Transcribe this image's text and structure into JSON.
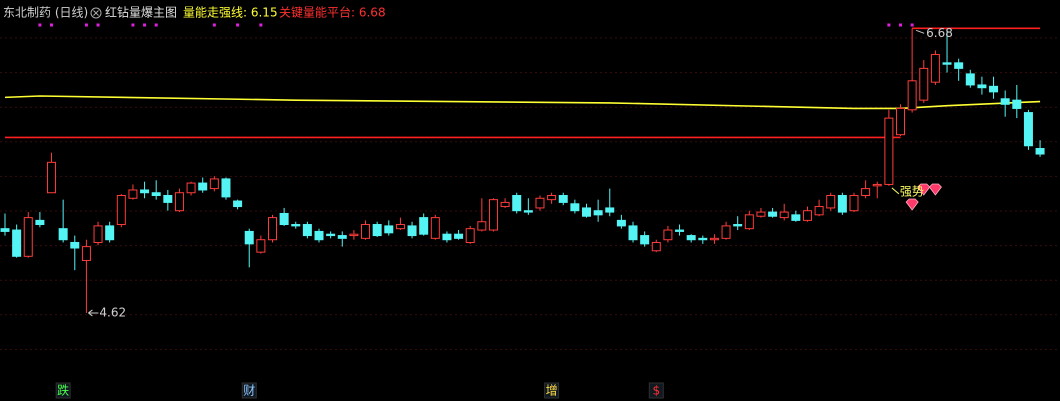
{
  "chart_data": {
    "type": "candlestick",
    "header": {
      "stock": "东北制药 (日线)",
      "indicator": "红钻量爆主图",
      "strong_line": "量能走强线: 6.15",
      "platform": "关键量能平台: 6.68"
    },
    "ylim": [
      4.2,
      6.74
    ],
    "up_color": "#ff3c3c",
    "down_color": "#54f4f4",
    "ohlc": [
      [
        5.23,
        5.34,
        5.18,
        5.21
      ],
      [
        5.22,
        5.26,
        5.02,
        5.03
      ],
      [
        5.03,
        5.35,
        5.02,
        5.31
      ],
      [
        5.29,
        5.35,
        5.24,
        5.26
      ],
      [
        5.49,
        5.78,
        5.49,
        5.71
      ],
      [
        5.23,
        5.44,
        5.13,
        5.15
      ],
      [
        5.13,
        5.18,
        4.93,
        5.09
      ],
      [
        5.0,
        5.15,
        4.62,
        5.1
      ],
      [
        5.13,
        5.28,
        5.11,
        5.25
      ],
      [
        5.25,
        5.28,
        5.13,
        5.15
      ],
      [
        5.26,
        5.48,
        5.24,
        5.47
      ],
      [
        5.45,
        5.55,
        5.44,
        5.51
      ],
      [
        5.51,
        5.57,
        5.45,
        5.49
      ],
      [
        5.49,
        5.58,
        5.44,
        5.47
      ],
      [
        5.47,
        5.51,
        5.36,
        5.42
      ],
      [
        5.36,
        5.52,
        5.35,
        5.49
      ],
      [
        5.49,
        5.57,
        5.47,
        5.56
      ],
      [
        5.56,
        5.6,
        5.49,
        5.51
      ],
      [
        5.52,
        5.61,
        5.5,
        5.59
      ],
      [
        5.59,
        5.6,
        5.44,
        5.46
      ],
      [
        5.43,
        5.44,
        5.37,
        5.39
      ],
      [
        5.21,
        5.23,
        4.95,
        5.12
      ],
      [
        5.06,
        5.18,
        5.05,
        5.15
      ],
      [
        5.15,
        5.33,
        5.13,
        5.31
      ],
      [
        5.34,
        5.38,
        5.25,
        5.26
      ],
      [
        5.26,
        5.28,
        5.23,
        5.25
      ],
      [
        5.26,
        5.28,
        5.16,
        5.18
      ],
      [
        5.21,
        5.23,
        5.13,
        5.15
      ],
      [
        5.19,
        5.21,
        5.16,
        5.18
      ],
      [
        5.18,
        5.21,
        5.1,
        5.16
      ],
      [
        5.18,
        5.22,
        5.15,
        5.19
      ],
      [
        5.16,
        5.29,
        5.15,
        5.26
      ],
      [
        5.26,
        5.28,
        5.17,
        5.18
      ],
      [
        5.25,
        5.29,
        5.18,
        5.2
      ],
      [
        5.23,
        5.31,
        5.22,
        5.26
      ],
      [
        5.25,
        5.28,
        5.16,
        5.18
      ],
      [
        5.31,
        5.34,
        5.18,
        5.19
      ],
      [
        5.16,
        5.33,
        5.15,
        5.31
      ],
      [
        5.19,
        5.21,
        5.13,
        5.15
      ],
      [
        5.19,
        5.22,
        5.15,
        5.16
      ],
      [
        5.13,
        5.25,
        5.12,
        5.23
      ],
      [
        5.22,
        5.45,
        5.21,
        5.28
      ],
      [
        5.22,
        5.45,
        5.21,
        5.44
      ],
      [
        5.39,
        5.45,
        5.38,
        5.42
      ],
      [
        5.47,
        5.49,
        5.34,
        5.36
      ],
      [
        5.36,
        5.45,
        5.33,
        5.35
      ],
      [
        5.38,
        5.47,
        5.36,
        5.45
      ],
      [
        5.44,
        5.49,
        5.41,
        5.47
      ],
      [
        5.47,
        5.49,
        5.4,
        5.42
      ],
      [
        5.41,
        5.44,
        5.34,
        5.36
      ],
      [
        5.38,
        5.41,
        5.31,
        5.32
      ],
      [
        5.36,
        5.44,
        5.28,
        5.33
      ],
      [
        5.38,
        5.52,
        5.32,
        5.35
      ],
      [
        5.29,
        5.33,
        5.23,
        5.25
      ],
      [
        5.25,
        5.28,
        5.13,
        5.15
      ],
      [
        5.18,
        5.21,
        5.1,
        5.12
      ],
      [
        5.07,
        5.15,
        5.06,
        5.13
      ],
      [
        5.15,
        5.25,
        5.13,
        5.22
      ],
      [
        5.22,
        5.26,
        5.18,
        5.21
      ],
      [
        5.18,
        5.19,
        5.13,
        5.15
      ],
      [
        5.16,
        5.18,
        5.12,
        5.15
      ],
      [
        5.15,
        5.19,
        5.12,
        5.16
      ],
      [
        5.16,
        5.28,
        5.15,
        5.25
      ],
      [
        5.26,
        5.32,
        5.22,
        5.25
      ],
      [
        5.23,
        5.36,
        5.22,
        5.33
      ],
      [
        5.32,
        5.38,
        5.31,
        5.35
      ],
      [
        5.35,
        5.38,
        5.31,
        5.32
      ],
      [
        5.31,
        5.41,
        5.29,
        5.35
      ],
      [
        5.33,
        5.36,
        5.28,
        5.29
      ],
      [
        5.29,
        5.39,
        5.28,
        5.36
      ],
      [
        5.33,
        5.44,
        5.32,
        5.39
      ],
      [
        5.38,
        5.49,
        5.36,
        5.47
      ],
      [
        5.47,
        5.49,
        5.33,
        5.35
      ],
      [
        5.36,
        5.49,
        5.35,
        5.47
      ],
      [
        5.47,
        5.58,
        5.45,
        5.52
      ],
      [
        5.54,
        5.57,
        5.45,
        5.55
      ],
      [
        5.55,
        6.09,
        5.54,
        6.03
      ],
      [
        5.91,
        6.13,
        5.9,
        6.1
      ],
      [
        6.09,
        6.68,
        6.07,
        6.3
      ],
      [
        6.16,
        6.45,
        6.14,
        6.39
      ],
      [
        6.29,
        6.52,
        6.27,
        6.49
      ],
      [
        6.43,
        6.67,
        6.36,
        6.42
      ],
      [
        6.43,
        6.46,
        6.3,
        6.39
      ],
      [
        6.35,
        6.38,
        6.25,
        6.27
      ],
      [
        6.27,
        6.33,
        6.2,
        6.25
      ],
      [
        6.26,
        6.33,
        6.17,
        6.22
      ],
      [
        6.17,
        6.23,
        6.04,
        6.13
      ],
      [
        6.16,
        6.27,
        6.03,
        6.1
      ],
      [
        6.07,
        6.09,
        5.8,
        5.83
      ],
      [
        5.81,
        5.87,
        5.75,
        5.77
      ]
    ],
    "lines": [
      {
        "color": "#ffff33",
        "x": [
          0,
          3,
          25,
          52,
          73,
          77,
          81,
          89
        ],
        "values": [
          6.18,
          6.19,
          6.16,
          6.14,
          6.1,
          6.1,
          6.12,
          6.15
        ]
      },
      {
        "color": "#ff2020",
        "x": [
          0,
          77
        ],
        "values": [
          5.89,
          5.89
        ]
      },
      {
        "color": "#ff2020",
        "x": [
          78,
          89
        ],
        "values": [
          6.68,
          6.68
        ]
      }
    ],
    "high_label": "6.68",
    "low_label": "4.62",
    "strong_label": "强势",
    "dot_signals": [
      3,
      4,
      7,
      8,
      11,
      12,
      13,
      18,
      20,
      22,
      76,
      77,
      78
    ],
    "diamond_signals": [
      78,
      79,
      80
    ],
    "event_markers": [
      {
        "index": 5,
        "label": "跌",
        "color": "#4cff4c"
      },
      {
        "index": 21,
        "label": "财",
        "color": "#8fc8ff"
      },
      {
        "index": 47,
        "label": "增",
        "color": "#ffdd44"
      },
      {
        "index": 56,
        "label": "$",
        "color": "#ff3030"
      }
    ]
  }
}
